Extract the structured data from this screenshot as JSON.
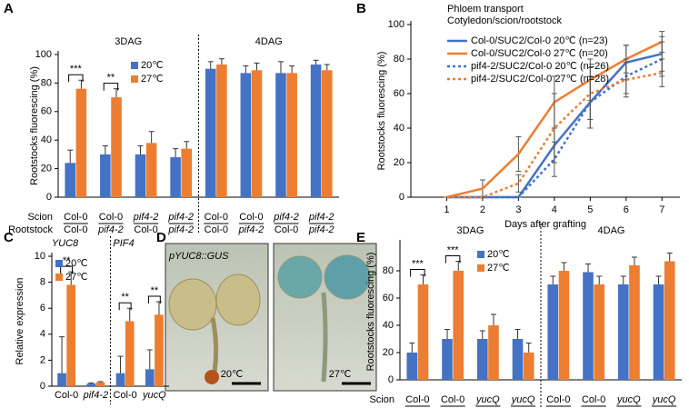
{
  "panels": {
    "letters": [
      "A",
      "B",
      "C",
      "D",
      "E"
    ],
    "image": {
      "title": "pYUC8::GUS",
      "labels": [
        "20℃",
        "27℃"
      ]
    }
  },
  "chart_data": [
    {
      "type": "groupbar",
      "y_label": "Rootstocks fluorescing (%)",
      "sections": [
        "3DAG",
        "4DAG"
      ],
      "row_labels": [
        "Scion",
        "Rootstock"
      ],
      "categories": [
        "Col-0",
        "Col-0",
        "pif4-2",
        "pif4-2",
        "Col-0",
        "Col-0",
        "pif4-2",
        "pif4-2"
      ],
      "categories2": [
        "Col-0",
        "pif4-2",
        "Col-0",
        "pif4-2",
        "Col-0",
        "pif4-2",
        "Col-0",
        "pif4-2"
      ],
      "italic": [
        "pif4-2"
      ],
      "series": [
        {
          "name": "20℃",
          "color": "#4472c4",
          "values": [
            24,
            30,
            30,
            28,
            90,
            87,
            87,
            93
          ],
          "errors": [
            9,
            6,
            6,
            6,
            5,
            5,
            8,
            3
          ]
        },
        {
          "name": "27℃",
          "color": "#ed7d31",
          "values": [
            76,
            70,
            38,
            34,
            93,
            89,
            87,
            89
          ],
          "errors": [
            6,
            6,
            8,
            5,
            4,
            5,
            5,
            4
          ]
        }
      ],
      "significance": [
        "***",
        "**",
        null,
        null,
        null,
        null,
        null,
        null
      ],
      "ylim": [
        0,
        100
      ],
      "yticks": [
        0,
        20,
        40,
        60,
        80,
        100
      ],
      "legend": "upper left"
    },
    {
      "type": "line",
      "legend_title": [
        "Phloem transport",
        "Cotyledon/scion/rootstock"
      ],
      "x_label": "Days after grafting",
      "y_label": "Rootstocks fluorescing (%)",
      "x": [
        1,
        2,
        3,
        4,
        5,
        6,
        7
      ],
      "xlim": [
        0,
        7.5
      ],
      "xticks": [
        1,
        2,
        3,
        4,
        5,
        6,
        7
      ],
      "ylim": [
        0,
        100
      ],
      "yticks": [
        0,
        20,
        40,
        60,
        80,
        100
      ],
      "series": [
        {
          "name": "Col-0/SUC2/Col-0 20℃ (n=23)",
          "color": "#4472c4",
          "style": "solid",
          "values": [
            0,
            0,
            0,
            30,
            55,
            78,
            83
          ],
          "errors": [
            0,
            0,
            0,
            10,
            15,
            10,
            10
          ]
        },
        {
          "name": "Col-0/SUC2/Col-0 27℃ (n=20)",
          "color": "#ed7d31",
          "style": "solid",
          "values": [
            0,
            5,
            25,
            55,
            68,
            80,
            90
          ],
          "errors": [
            0,
            5,
            10,
            15,
            12,
            8,
            6
          ]
        },
        {
          "name": "pif4-2/SUC2/Col-0 20℃ (n=26)",
          "color": "#4472c4",
          "style": "dotted",
          "values": [
            0,
            0,
            0,
            22,
            55,
            70,
            80
          ],
          "errors": [
            0,
            0,
            0,
            10,
            15,
            10,
            10
          ]
        },
        {
          "name": "pif4-2/SUC2/Col-0 27℃ (n=28)",
          "color": "#ed7d31",
          "style": "dotted",
          "values": [
            0,
            0,
            8,
            40,
            60,
            68,
            72
          ],
          "errors": [
            0,
            0,
            5,
            20,
            15,
            10,
            8
          ]
        }
      ]
    },
    {
      "type": "groupbar",
      "y_label": "Relative expression",
      "sections": [
        "YUC8",
        "PIF4"
      ],
      "categories": [
        "Col-0",
        "pif4-2",
        "Col-0",
        "yucQ"
      ],
      "italic": [
        "pif4-2",
        "yucQ"
      ],
      "series": [
        {
          "name": "20℃",
          "color": "#4472c4",
          "values": [
            1,
            0.2,
            1,
            1.3
          ],
          "errors": [
            2.8,
            0.05,
            1.3,
            1.5
          ]
        },
        {
          "name": "27℃",
          "color": "#ed7d31",
          "values": [
            7.8,
            0.3,
            5,
            5.5
          ],
          "errors": [
            1,
            0.05,
            1,
            1
          ]
        }
      ],
      "significance": [
        "**",
        null,
        "**",
        "**"
      ],
      "ylim": [
        0,
        10
      ],
      "yticks": [
        0,
        2,
        4,
        6,
        8,
        10
      ],
      "legend": "upper left"
    },
    {
      "type": "groupbar",
      "y_label": "Rootstocks fluorescing (%)",
      "sections": [
        "3DAG",
        "4DAG"
      ],
      "row_labels": [
        "Scion",
        "Rootstock"
      ],
      "categories": [
        "Col-0",
        "Col-0",
        "yucQ",
        "yucQ",
        "Col-0",
        "Col-0",
        "yucQ",
        "yucQ"
      ],
      "categories2": [
        "Col-0",
        "yucQ",
        "Col-0",
        "yucQ",
        "Col-0",
        "yucQ",
        "Col-0",
        "yucQ"
      ],
      "italic": [
        "yucQ"
      ],
      "series": [
        {
          "name": "20℃",
          "color": "#4472c4",
          "values": [
            20,
            30,
            30,
            30,
            70,
            79,
            70,
            70
          ],
          "errors": [
            7,
            7,
            6,
            7,
            6,
            6,
            6,
            6
          ]
        },
        {
          "name": "27℃",
          "color": "#ed7d31",
          "values": [
            70,
            80,
            40,
            20,
            80,
            70,
            84,
            87
          ],
          "errors": [
            7,
            7,
            8,
            7,
            6,
            6,
            6,
            6
          ]
        }
      ],
      "significance": [
        "***",
        "***",
        null,
        null,
        null,
        null,
        null,
        null
      ],
      "ylim": [
        0,
        100
      ],
      "yticks": [
        0,
        20,
        40,
        60,
        80
      ],
      "legend": "upper center"
    }
  ]
}
